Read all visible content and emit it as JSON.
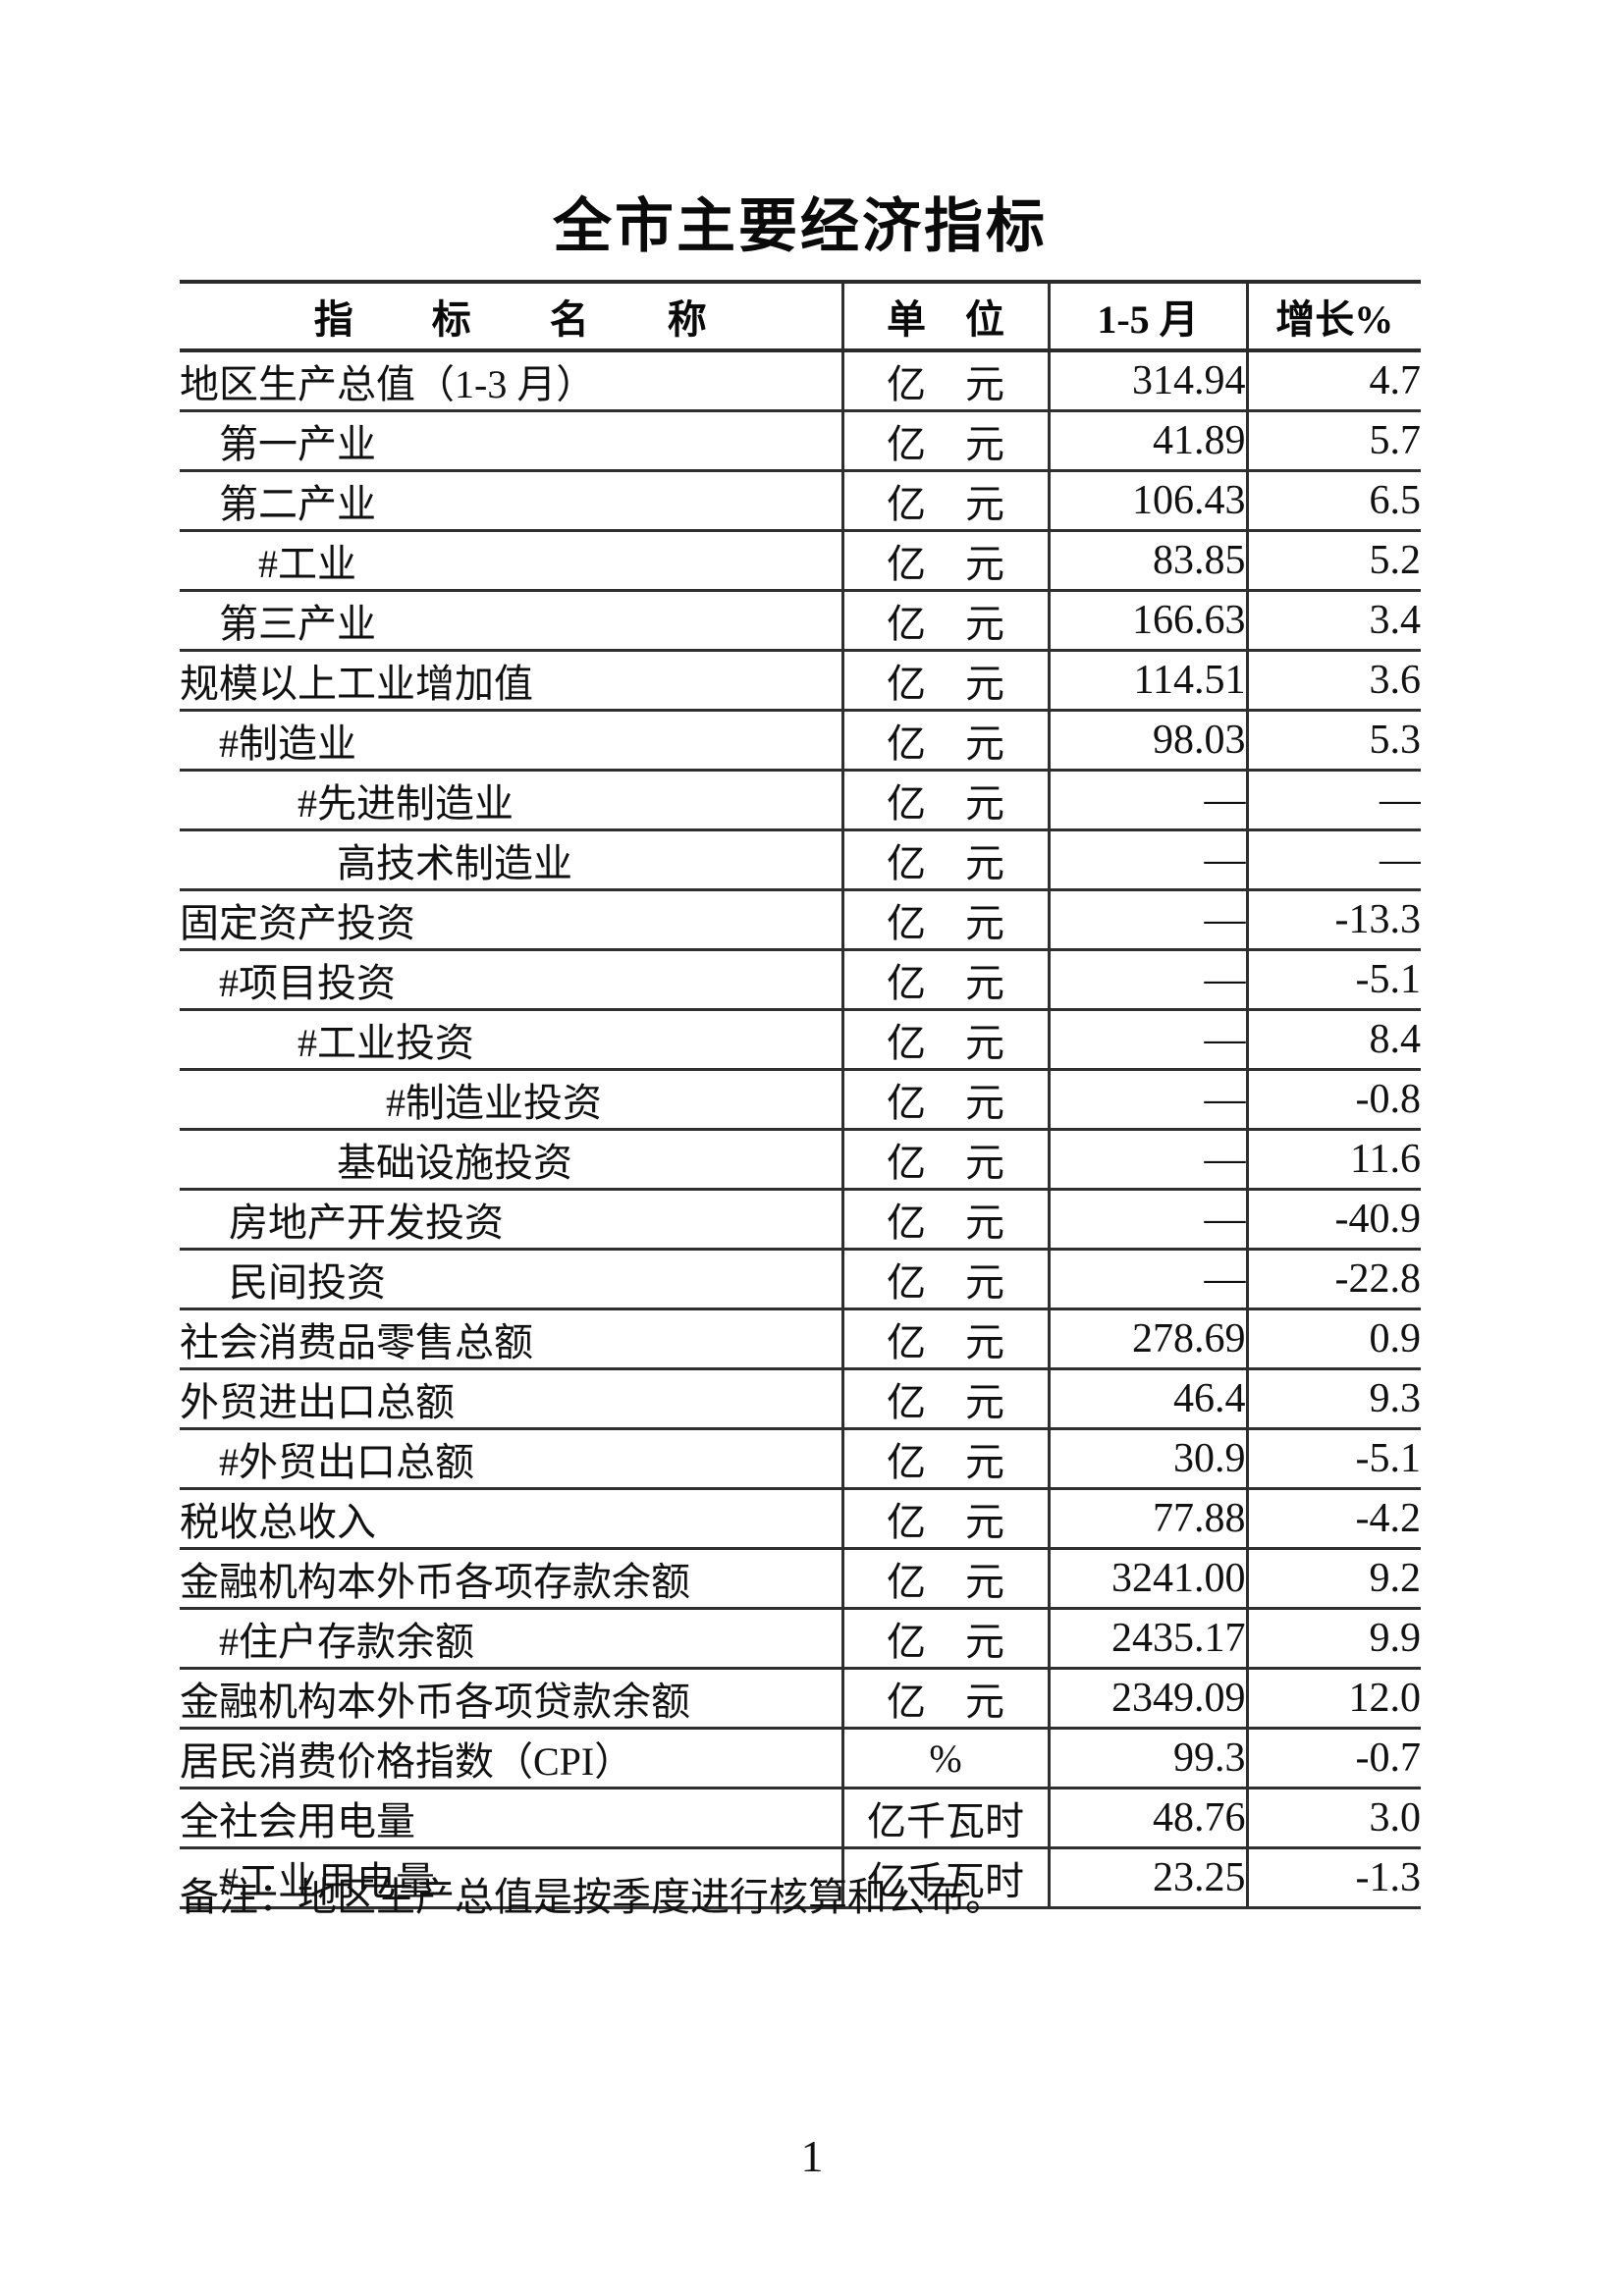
{
  "page": {
    "title": "全市主要经济指标",
    "note": "备注：地区生产总值是按季度进行核算和公布。",
    "page_number": "1"
  },
  "table": {
    "headers": {
      "name": "指　　标　　名　　称",
      "unit": "单　位",
      "period": "1-5 月",
      "growth": "增长%"
    },
    "rows": [
      {
        "name": "地区生产总值（1-3 月）",
        "unit": "亿　元",
        "value": "314.94",
        "growth": "4.7"
      },
      {
        "name": "　第一产业",
        "unit": "亿　元",
        "value": "41.89",
        "growth": "5.7"
      },
      {
        "name": "　第二产业",
        "unit": "亿　元",
        "value": "106.43",
        "growth": "6.5"
      },
      {
        "name": "　　#工业",
        "unit": "亿　元",
        "value": "83.85",
        "growth": "5.2"
      },
      {
        "name": "　第三产业",
        "unit": "亿　元",
        "value": "166.63",
        "growth": "3.4"
      },
      {
        "name": "规模以上工业增加值",
        "unit": "亿　元",
        "value": "114.51",
        "growth": "3.6"
      },
      {
        "name": "　#制造业",
        "unit": "亿　元",
        "value": "98.03",
        "growth": "5.3"
      },
      {
        "name": "　　　#先进制造业",
        "unit": "亿　元",
        "value": "—",
        "growth": "—"
      },
      {
        "name": "　　　　高技术制造业",
        "unit": "亿　元",
        "value": "—",
        "growth": "—"
      },
      {
        "name": "固定资产投资",
        "unit": "亿　元",
        "value": "—",
        "growth": "-13.3"
      },
      {
        "name": "　#项目投资",
        "unit": "亿　元",
        "value": "—",
        "growth": "-5.1"
      },
      {
        "name": "　　　#工业投资",
        "unit": "亿　元",
        "value": "—",
        "growth": "8.4"
      },
      {
        "name": "　　　　　 #制造业投资",
        "unit": "亿　元",
        "value": "—",
        "growth": "-0.8"
      },
      {
        "name": "　　　　基础设施投资",
        "unit": "亿　元",
        "value": "—",
        "growth": "11.6"
      },
      {
        "name": "　 房地产开发投资",
        "unit": "亿　元",
        "value": "—",
        "growth": "-40.9"
      },
      {
        "name": "　 民间投资",
        "unit": "亿　元",
        "value": "—",
        "growth": "-22.8"
      },
      {
        "name": "社会消费品零售总额",
        "unit": "亿　元",
        "value": "278.69",
        "growth": "0.9"
      },
      {
        "name": "外贸进出口总额",
        "unit": "亿　元",
        "value": "46.4",
        "growth": "9.3"
      },
      {
        "name": "　#外贸出口总额",
        "unit": "亿　元",
        "value": "30.9",
        "growth": "-5.1"
      },
      {
        "name": "税收总收入",
        "unit": "亿　元",
        "value": "77.88",
        "growth": "-4.2"
      },
      {
        "name": "金融机构本外币各项存款余额",
        "unit": "亿　元",
        "value": "3241.00",
        "growth": "9.2"
      },
      {
        "name": "　#住户存款余额",
        "unit": "亿　元",
        "value": "2435.17",
        "growth": "9.9"
      },
      {
        "name": "金融机构本外币各项贷款余额",
        "unit": "亿　元",
        "value": "2349.09",
        "growth": "12.0"
      },
      {
        "name": "居民消费价格指数（CPI）",
        "unit": "%",
        "value": "99.3",
        "growth": "-0.7"
      },
      {
        "name": "全社会用电量",
        "unit": "亿千瓦时",
        "value": "48.76",
        "growth": "3.0"
      },
      {
        "name": "　#工业用电量",
        "unit": "亿千瓦时",
        "value": "23.25",
        "growth": "-1.3"
      }
    ]
  }
}
